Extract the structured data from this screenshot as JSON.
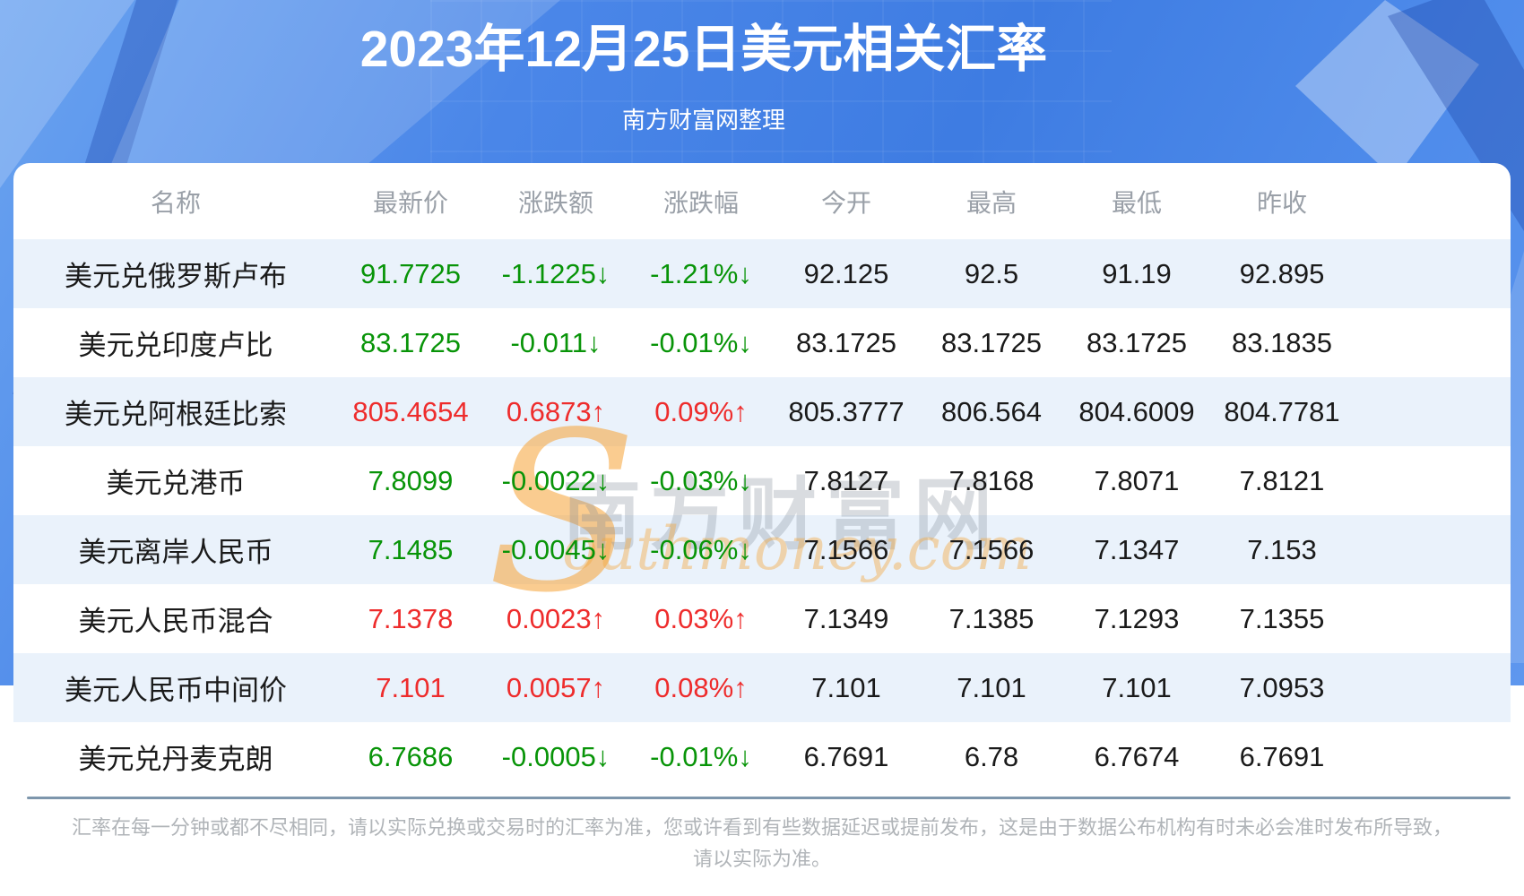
{
  "banner": {
    "title": "2023年12月25日美元相关汇率",
    "subtitle": "南方财富网整理"
  },
  "table": {
    "headers": [
      "名称",
      "最新价",
      "涨跌额",
      "涨跌幅",
      "今开",
      "最高",
      "最低",
      "昨收"
    ],
    "rows": [
      {
        "name": "美元兑俄罗斯卢布",
        "latest": "91.7725",
        "change": "-1.1225↓",
        "change_pct": "-1.21%↓",
        "open": "92.125",
        "high": "92.5",
        "low": "91.19",
        "prev_close": "92.895",
        "trend": "down"
      },
      {
        "name": "美元兑印度卢比",
        "latest": "83.1725",
        "change": "-0.011↓",
        "change_pct": "-0.01%↓",
        "open": "83.1725",
        "high": "83.1725",
        "low": "83.1725",
        "prev_close": "83.1835",
        "trend": "down"
      },
      {
        "name": "美元兑阿根廷比索",
        "latest": "805.4654",
        "change": "0.6873↑",
        "change_pct": "0.09%↑",
        "open": "805.3777",
        "high": "806.564",
        "low": "804.6009",
        "prev_close": "804.7781",
        "trend": "up"
      },
      {
        "name": "美元兑港币",
        "latest": "7.8099",
        "change": "-0.0022↓",
        "change_pct": "-0.03%↓",
        "open": "7.8127",
        "high": "7.8168",
        "low": "7.8071",
        "prev_close": "7.8121",
        "trend": "down"
      },
      {
        "name": "美元离岸人民币",
        "latest": "7.1485",
        "change": "-0.0045↓",
        "change_pct": "-0.06%↓",
        "open": "7.1566",
        "high": "7.1566",
        "low": "7.1347",
        "prev_close": "7.153",
        "trend": "down"
      },
      {
        "name": "美元人民币混合",
        "latest": "7.1378",
        "change": "0.0023↑",
        "change_pct": "0.03%↑",
        "open": "7.1349",
        "high": "7.1385",
        "low": "7.1293",
        "prev_close": "7.1355",
        "trend": "up"
      },
      {
        "name": "美元人民币中间价",
        "latest": "7.101",
        "change": "0.0057↑",
        "change_pct": "0.08%↑",
        "open": "7.101",
        "high": "7.101",
        "low": "7.101",
        "prev_close": "7.0953",
        "trend": "up"
      },
      {
        "name": "美元兑丹麦克朗",
        "latest": "6.7686",
        "change": "-0.0005↓",
        "change_pct": "-0.01%↓",
        "open": "6.7691",
        "high": "6.78",
        "low": "6.7674",
        "prev_close": "6.7691",
        "trend": "down"
      }
    ]
  },
  "watermark": {
    "s": "S",
    "cn": "南方财富网",
    "en": "outhmoney.com"
  },
  "footer": {
    "line1": "汇率在每一分钟或都不尽相同，请以实际兑换或交易时的汇率为准，您或许看到有些数据延迟或提前发布，这是由于数据公布机构有时未必会准时发布所导致，",
    "line2": "请以实际为准。"
  },
  "colors": {
    "banner_blue": "#4a86e8",
    "up_red": "#ee2c2c",
    "down_green": "#089408",
    "row_tint": "#eaf2fb",
    "divider": "#7d96ac",
    "watermark_orange": "#f5a33c"
  },
  "chart_data": {
    "type": "table",
    "title": "2023年12月25日美元相关汇率",
    "subtitle": "南方财富网整理",
    "columns": [
      "名称",
      "最新价",
      "涨跌额",
      "涨跌幅",
      "今开",
      "最高",
      "最低",
      "昨收"
    ],
    "rows": [
      [
        "美元兑俄罗斯卢布",
        "91.7725",
        "-1.1225↓",
        "-1.21%↓",
        "92.125",
        "92.5",
        "91.19",
        "92.895"
      ],
      [
        "美元兑印度卢比",
        "83.1725",
        "-0.011↓",
        "-0.01%↓",
        "83.1725",
        "83.1725",
        "83.1725",
        "83.1835"
      ],
      [
        "美元兑阿根廷比索",
        "805.4654",
        "0.6873↑",
        "0.09%↑",
        "805.3777",
        "806.564",
        "804.6009",
        "804.7781"
      ],
      [
        "美元兑港币",
        "7.8099",
        "-0.0022↓",
        "-0.03%↓",
        "7.8127",
        "7.8168",
        "7.8071",
        "7.8121"
      ],
      [
        "美元离岸人民币",
        "7.1485",
        "-0.0045↓",
        "-0.06%↓",
        "7.1566",
        "7.1566",
        "7.1347",
        "7.153"
      ],
      [
        "美元人民币混合",
        "7.1378",
        "0.0023↑",
        "0.03%↑",
        "7.1349",
        "7.1385",
        "7.1293",
        "7.1355"
      ],
      [
        "美元人民币中间价",
        "7.101",
        "0.0057↑",
        "0.08%↑",
        "7.101",
        "7.101",
        "7.101",
        "7.0953"
      ],
      [
        "美元兑丹麦克朗",
        "6.7686",
        "-0.0005↓",
        "-0.01%↓",
        "6.7691",
        "6.78",
        "6.7674",
        "6.7691"
      ]
    ]
  }
}
